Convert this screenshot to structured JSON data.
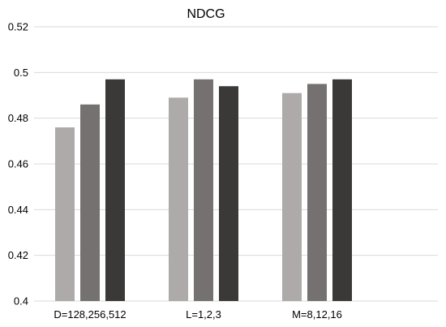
{
  "chart_data": {
    "type": "bar",
    "title": "NDCG",
    "xlabel": "",
    "ylabel": "",
    "categories": [
      "D=128,256,512",
      "L=1,2,3",
      "M=8,12,16"
    ],
    "series": [
      {
        "values": [
          0.476,
          0.489,
          0.491
        ]
      },
      {
        "values": [
          0.486,
          0.497,
          0.495
        ]
      },
      {
        "values": [
          0.497,
          0.494,
          0.497
        ]
      }
    ],
    "ylim": [
      0.4,
      0.52
    ],
    "yticks": [
      "0.52",
      "0.5",
      "0.48",
      "0.46",
      "0.44",
      "0.42",
      "0.4"
    ],
    "grid": true,
    "legend": "none",
    "colors": [
      "#aeaaaa",
      "#767171",
      "#3b3838"
    ]
  }
}
